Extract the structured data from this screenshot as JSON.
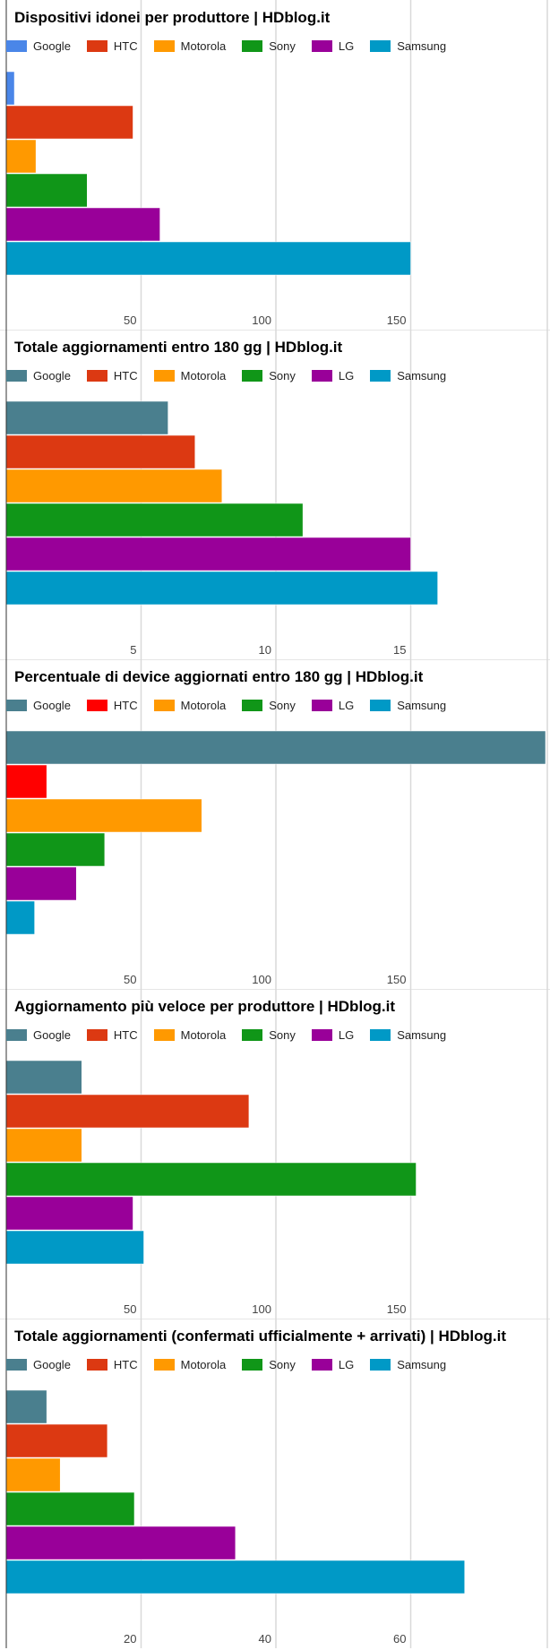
{
  "chart_data": [
    {
      "type": "bar",
      "orientation": "horizontal",
      "title": "Dispositivi idonei per produttore | HDblog.it",
      "categories": [
        "Google",
        "HTC",
        "Motorola",
        "Sony",
        "LG",
        "Samsung"
      ],
      "colors": [
        "#4a86e8",
        "#dc3912",
        "#ff9900",
        "#109618",
        "#990099",
        "#0099c6"
      ],
      "values": [
        3,
        47,
        11,
        30,
        57,
        150
      ],
      "xlim": [
        0,
        200
      ],
      "ticks": [
        50,
        100,
        150
      ],
      "legend": "top-left",
      "grid": true
    },
    {
      "type": "bar",
      "orientation": "horizontal",
      "title": "Totale aggiornamenti entro 180 gg | HDblog.it",
      "categories": [
        "Google",
        "HTC",
        "Motorola",
        "Sony",
        "LG",
        "Samsung"
      ],
      "colors": [
        "#4a7f8e",
        "#dc3912",
        "#ff9900",
        "#109618",
        "#990099",
        "#0099c6"
      ],
      "values": [
        6,
        7,
        8,
        11,
        15,
        16
      ],
      "xlim": [
        0,
        20
      ],
      "ticks": [
        5,
        10,
        15
      ],
      "legend": "top-left",
      "grid": true
    },
    {
      "type": "bar",
      "orientation": "horizontal",
      "title": "Percentuale di device aggiornati entro 180 gg | HDblog.it",
      "categories": [
        "Google",
        "HTC",
        "Motorola",
        "Sony",
        "LG",
        "Samsung"
      ],
      "colors": [
        "#4a7f8e",
        "#ff0000",
        "#ff9900",
        "#109618",
        "#990099",
        "#0099c6"
      ],
      "values": [
        200,
        15,
        72.5,
        36.5,
        26,
        10.5
      ],
      "xlim": [
        0,
        200
      ],
      "ticks": [
        50,
        100,
        150
      ],
      "legend": "top-left",
      "grid": true
    },
    {
      "type": "bar",
      "orientation": "horizontal",
      "title": "Aggiornamento più veloce per produttore | HDblog.it",
      "categories": [
        "Google",
        "HTC",
        "Motorola",
        "Sony",
        "LG",
        "Samsung"
      ],
      "colors": [
        "#4a7f8e",
        "#dc3912",
        "#ff9900",
        "#109618",
        "#990099",
        "#0099c6"
      ],
      "values": [
        28,
        90,
        28,
        152,
        47,
        51
      ],
      "xlim": [
        0,
        200
      ],
      "ticks": [
        50,
        100,
        150
      ],
      "legend": "top-left",
      "grid": true
    },
    {
      "type": "bar",
      "orientation": "horizontal",
      "title": "Totale aggiornamenti (confermati ufficialmente + arrivati) | HDblog.it",
      "categories": [
        "Google",
        "HTC",
        "Motorola",
        "Sony",
        "LG",
        "Samsung"
      ],
      "colors": [
        "#4a7f8e",
        "#dc3912",
        "#ff9900",
        "#109618",
        "#990099",
        "#0099c6"
      ],
      "values": [
        6,
        15,
        8,
        19,
        34,
        68
      ],
      "xlim": [
        0,
        80
      ],
      "ticks": [
        20,
        40,
        60
      ],
      "legend": "top-left",
      "grid": true
    }
  ]
}
